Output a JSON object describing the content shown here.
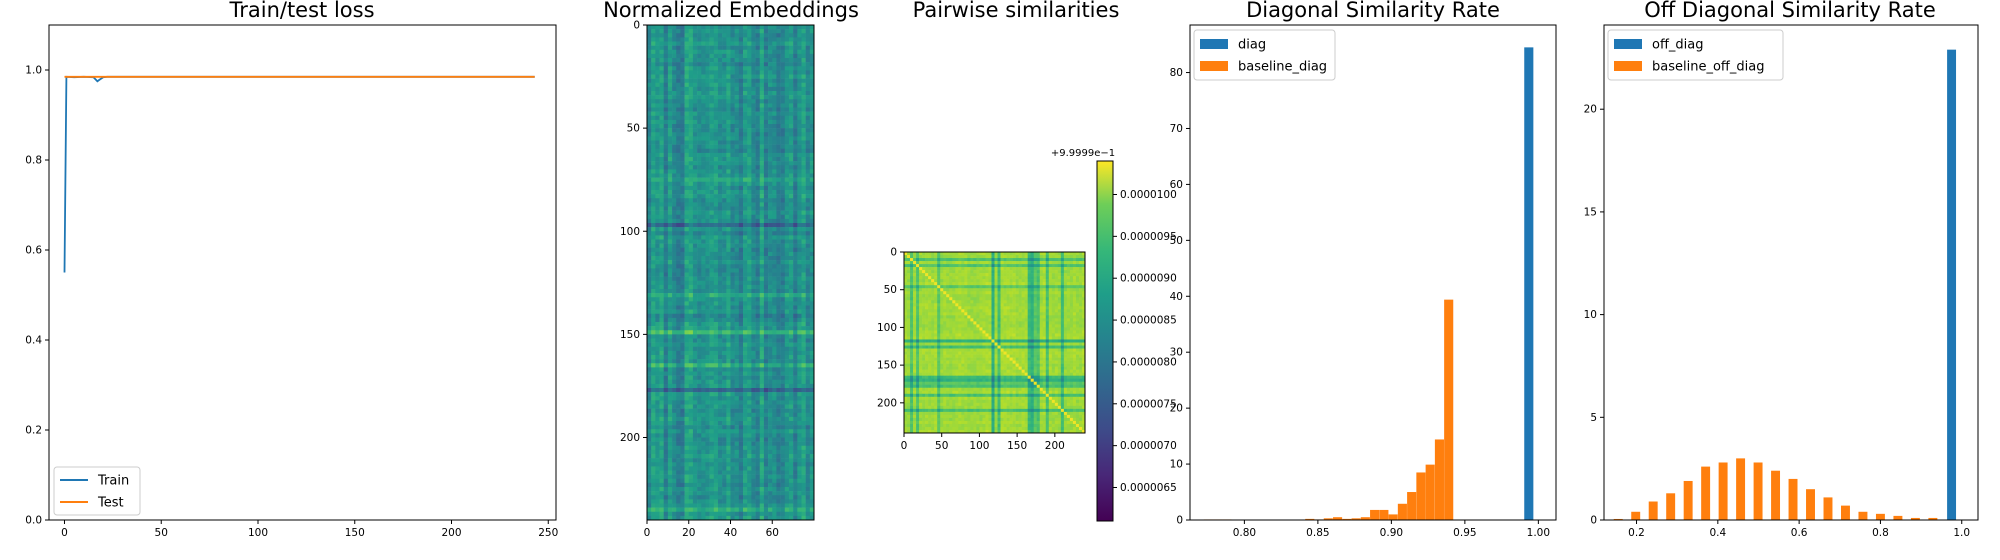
{
  "chart_data": [
    {
      "type": "line",
      "title": "Train/test loss",
      "xlim": [
        -8,
        254
      ],
      "ylim": [
        0.0,
        1.1
      ],
      "xticks": [
        0,
        50,
        100,
        150,
        200,
        250
      ],
      "yticks": [
        0.0,
        0.2,
        0.4,
        0.6,
        0.8,
        1.0
      ],
      "xtick_labels": [
        "0",
        "50",
        "100",
        "150",
        "200",
        "250"
      ],
      "ytick_labels": [
        "0.0",
        "0.2",
        "0.4",
        "0.6",
        "0.8",
        "1.0"
      ],
      "legend_position": "lower-left",
      "series": [
        {
          "name": "Train",
          "color": "#1f77b4",
          "points": [
            [
              0,
              0.55
            ],
            [
              1,
              0.985
            ],
            [
              5,
              0.984
            ],
            [
              10,
              0.985
            ],
            [
              15,
              0.984
            ],
            [
              17,
              0.975
            ],
            [
              18,
              0.978
            ],
            [
              20,
              0.984
            ],
            [
              22,
              0.985
            ],
            [
              243,
              0.985
            ]
          ]
        },
        {
          "name": "Test",
          "color": "#ff7f0e",
          "points": [
            [
              0,
              0.985
            ],
            [
              243,
              0.985
            ]
          ]
        }
      ]
    },
    {
      "type": "heatmap",
      "title": "Normalized Embeddings",
      "rows": 240,
      "cols": 80,
      "xticks": [
        0,
        20,
        40,
        60
      ],
      "yticks": [
        0,
        50,
        100,
        150,
        200
      ],
      "xtick_labels": [
        "0",
        "20",
        "40",
        "60"
      ],
      "ytick_labels": [
        "0",
        "50",
        "100",
        "150",
        "200"
      ],
      "colormap": "viridis"
    },
    {
      "type": "heatmap",
      "title": "Pairwise similarities",
      "rows": 240,
      "cols": 240,
      "xticks": [
        0,
        50,
        100,
        150,
        200
      ],
      "yticks": [
        0,
        50,
        100,
        150,
        200
      ],
      "xtick_labels": [
        "0",
        "50",
        "100",
        "150",
        "200"
      ],
      "ytick_labels": [
        "0",
        "50",
        "100",
        "150",
        "200"
      ],
      "colormap": "viridis",
      "colorbar": {
        "offset_label": "+9.9999e−1",
        "ticks": [
          6.5e-07,
          7e-07,
          7.5e-07,
          8e-07,
          8.5e-07,
          9e-07,
          9.5e-07,
          1e-06
        ],
        "tick_labels": [
          "0.0000065",
          "0.0000070",
          "0.0000075",
          "0.0000080",
          "0.0000085",
          "0.0000090",
          "0.0000095",
          "0.0000100"
        ],
        "range": [
          6.1e-07,
          1.04e-06
        ]
      }
    },
    {
      "type": "bar",
      "title": "Diagonal Similarity Rate",
      "xlim": [
        0.763,
        1.012
      ],
      "ylim": [
        0,
        88.5
      ],
      "xticks": [
        0.8,
        0.85,
        0.9,
        0.95,
        1.0
      ],
      "yticks": [
        0,
        10,
        20,
        30,
        40,
        50,
        60,
        70,
        80
      ],
      "xtick_labels": [
        "0.80",
        "0.85",
        "0.90",
        "0.95",
        "1.00"
      ],
      "ytick_labels": [
        "0",
        "10",
        "20",
        "30",
        "40",
        "50",
        "60",
        "70",
        "80"
      ],
      "legend_position": "upper-left",
      "bin_width": 0.0062,
      "series": [
        {
          "name": "diag",
          "color": "#1f77b4",
          "points": [
            [
              0.9935,
              84.5
            ]
          ]
        },
        {
          "name": "baseline_diag",
          "color": "#ff7f0e",
          "points": [
            [
              0.7755,
              0.1
            ],
            [
              0.7818,
              0.1
            ],
            [
              0.7881,
              0.1
            ],
            [
              0.8445,
              0.2
            ],
            [
              0.8508,
              0.1
            ],
            [
              0.8571,
              0.3
            ],
            [
              0.8634,
              0.5
            ],
            [
              0.8697,
              0.2
            ],
            [
              0.876,
              0.3
            ],
            [
              0.8823,
              0.5
            ],
            [
              0.8886,
              1.8
            ],
            [
              0.8949,
              1.8
            ],
            [
              0.9012,
              1.0
            ],
            [
              0.9075,
              2.9
            ],
            [
              0.9138,
              5.0
            ],
            [
              0.9201,
              8.5
            ],
            [
              0.9264,
              9.9
            ],
            [
              0.9327,
              14.4
            ],
            [
              0.939,
              39.4
            ]
          ]
        }
      ]
    },
    {
      "type": "bar",
      "title": "Off Diagonal Similarity Rate",
      "xlim": [
        0.12,
        1.04
      ],
      "ylim": [
        0,
        24.1
      ],
      "xticks": [
        0.2,
        0.4,
        0.6,
        0.8,
        1.0
      ],
      "yticks": [
        0,
        5,
        10,
        15,
        20
      ],
      "xtick_labels": [
        "0.2",
        "0.4",
        "0.6",
        "0.8",
        "1.0"
      ],
      "ytick_labels": [
        "0",
        "5",
        "10",
        "15",
        "20"
      ],
      "legend_position": "upper-left",
      "bin_width": 0.022,
      "series": [
        {
          "name": "off_diag",
          "color": "#1f77b4",
          "points": [
            [
              0.975,
              22.9
            ]
          ]
        },
        {
          "name": "baseline_off_diag",
          "color": "#ff7f0e",
          "points": [
            [
              0.155,
              0.05
            ],
            [
              0.198,
              0.4
            ],
            [
              0.241,
              0.9
            ],
            [
              0.284,
              1.3
            ],
            [
              0.327,
              1.9
            ],
            [
              0.37,
              2.6
            ],
            [
              0.413,
              2.8
            ],
            [
              0.456,
              3.0
            ],
            [
              0.499,
              2.8
            ],
            [
              0.542,
              2.4
            ],
            [
              0.585,
              2.0
            ],
            [
              0.628,
              1.5
            ],
            [
              0.671,
              1.1
            ],
            [
              0.714,
              0.7
            ],
            [
              0.757,
              0.4
            ],
            [
              0.8,
              0.3
            ],
            [
              0.843,
              0.2
            ],
            [
              0.886,
              0.1
            ],
            [
              0.929,
              0.1
            ]
          ]
        }
      ]
    }
  ]
}
